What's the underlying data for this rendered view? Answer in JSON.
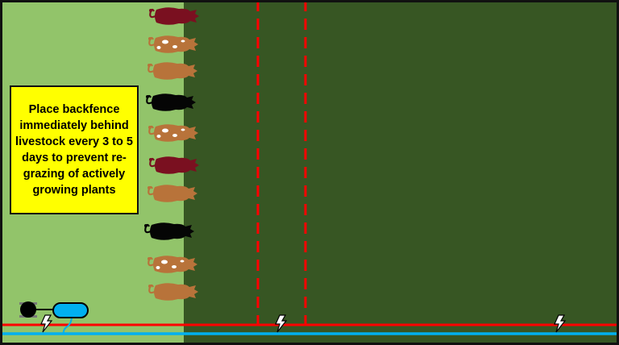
{
  "note": {
    "text": "Place backfence immediately behind livestock every 3 to 5 days to prevent re-grazing of actively growing plants"
  },
  "colors": {
    "grazed_pasture": "#92c46a",
    "ungrazed_pasture": "#375623",
    "fence_polywire": "#ff0000",
    "water_line": "#00b0f0",
    "note_background": "#ffff00",
    "water_tank": "#00b0f0"
  },
  "livestock": [
    {
      "coat": "maroon",
      "color": "#7a1020",
      "spots": false
    },
    {
      "coat": "spotted",
      "color": "#b8733a",
      "spots": true
    },
    {
      "coat": "brown",
      "color": "#b8733a",
      "spots": false
    },
    {
      "coat": "black",
      "color": "#050505",
      "spots": false
    },
    {
      "coat": "spotted",
      "color": "#b8733a",
      "spots": true
    },
    {
      "coat": "maroon",
      "color": "#7a1020",
      "spots": false
    },
    {
      "coat": "brown",
      "color": "#b8733a",
      "spots": false
    },
    {
      "coat": "black",
      "color": "#050505",
      "spots": false
    },
    {
      "coat": "spotted",
      "color": "#b8733a",
      "spots": true
    },
    {
      "coat": "brown",
      "color": "#b8733a",
      "spots": false
    }
  ],
  "icons": {
    "energizer": "lightning-bolt-icon",
    "tank": "water-tank-icon",
    "wheel": "reel-icon"
  }
}
